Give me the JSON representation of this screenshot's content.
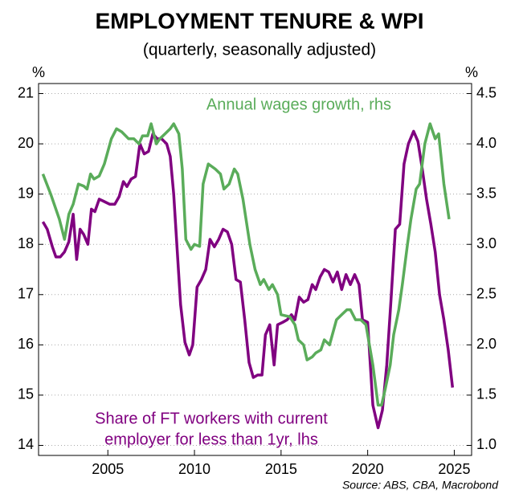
{
  "chart_data": {
    "type": "line",
    "title": "EMPLOYMENT TENURE & WPI",
    "subtitle": "(quarterly, seasonally adjusted)",
    "y_unit": "%",
    "y2_unit": "%",
    "source": "Source: ABS, CBA, Macrobond",
    "xlim": [
      2001,
      2026
    ],
    "xticks": [
      2005,
      2010,
      2015,
      2020,
      2025
    ],
    "ylim": [
      13.8,
      21.2
    ],
    "yticks": [
      14,
      15,
      16,
      17,
      18,
      19,
      20,
      21
    ],
    "y2lim": [
      0.9,
      4.6
    ],
    "y2ticks": [
      {
        "value": 1,
        "label": "1.0"
      },
      1.5,
      {
        "value": 2,
        "label": "2.0"
      },
      2.5,
      {
        "value": 3,
        "label": "3.0"
      },
      3.5,
      {
        "value": 4,
        "label": "4.0"
      },
      4.5
    ],
    "grid": true,
    "series": [
      {
        "name": "Share of FT workers with current employer for less than 1yr, lhs",
        "label_lines": [
          "Share of FT workers with current",
          "employer for less than 1yr, lhs"
        ],
        "color": "#800080",
        "axis": "y",
        "x": [
          2001.25,
          2001.5,
          2001.8,
          2002.0,
          2002.25,
          2002.5,
          2002.75,
          2003.0,
          2003.2,
          2003.4,
          2003.6,
          2003.85,
          2004.05,
          2004.25,
          2004.5,
          2004.8,
          2005.1,
          2005.4,
          2005.65,
          2005.9,
          2006.1,
          2006.35,
          2006.6,
          2006.85,
          2007.1,
          2007.35,
          2007.6,
          2007.85,
          2008.1,
          2008.4,
          2008.6,
          2008.8,
          2009.0,
          2009.2,
          2009.45,
          2009.7,
          2009.9,
          2010.15,
          2010.4,
          2010.65,
          2010.9,
          2011.15,
          2011.4,
          2011.65,
          2011.9,
          2012.15,
          2012.4,
          2012.65,
          2012.9,
          2013.15,
          2013.4,
          2013.65,
          2013.9,
          2014.1,
          2014.35,
          2014.6,
          2014.8,
          2015.1,
          2015.35,
          2015.6,
          2015.8,
          2016.05,
          2016.3,
          2016.55,
          2016.8,
          2017.0,
          2017.25,
          2017.5,
          2017.75,
          2018.0,
          2018.25,
          2018.5,
          2018.75,
          2019.0,
          2019.25,
          2019.5,
          2019.7,
          2020.0,
          2020.3,
          2020.6,
          2020.85,
          2021.1,
          2021.35,
          2021.6,
          2021.85,
          2022.1,
          2022.35,
          2022.65,
          2022.9,
          2023.15,
          2023.4,
          2023.65,
          2023.9,
          2024.15,
          2024.4,
          2024.65,
          2024.9
        ],
        "values": [
          18.45,
          18.3,
          17.95,
          17.75,
          17.75,
          17.85,
          18.05,
          18.6,
          17.7,
          18.3,
          18.2,
          18.0,
          18.7,
          18.65,
          18.9,
          18.85,
          18.8,
          18.8,
          18.95,
          19.25,
          19.15,
          19.3,
          19.35,
          20.0,
          19.8,
          19.85,
          20.2,
          20.1,
          20.1,
          20.0,
          19.75,
          19.0,
          17.9,
          16.8,
          16.05,
          15.8,
          16.0,
          17.15,
          17.3,
          17.5,
          18.1,
          17.95,
          18.1,
          18.3,
          18.25,
          18.0,
          17.3,
          17.25,
          16.5,
          15.65,
          15.35,
          15.4,
          15.4,
          16.2,
          16.4,
          15.6,
          16.4,
          16.45,
          16.5,
          16.6,
          16.5,
          16.95,
          16.85,
          16.9,
          17.2,
          17.1,
          17.35,
          17.5,
          17.45,
          17.25,
          17.45,
          17.1,
          17.4,
          17.2,
          17.4,
          17.2,
          16.5,
          16.45,
          14.8,
          14.35,
          14.7,
          15.6,
          16.9,
          18.3,
          18.4,
          19.6,
          20.0,
          20.25,
          20.05,
          19.5,
          18.9,
          18.4,
          17.85,
          17.0,
          16.5,
          15.9,
          15.15
        ]
      },
      {
        "name": "Annual wages growth, rhs",
        "color": "#5aac5a",
        "axis": "y2",
        "x": [
          2001.25,
          2001.7,
          2002.2,
          2002.5,
          2002.75,
          2003.0,
          2003.3,
          2003.6,
          2003.8,
          2004.0,
          2004.2,
          2004.5,
          2004.8,
          2005.2,
          2005.5,
          2005.8,
          2006.2,
          2006.5,
          2006.8,
          2007.0,
          2007.3,
          2007.5,
          2007.8,
          2008.0,
          2008.3,
          2008.6,
          2008.8,
          2009.1,
          2009.3,
          2009.5,
          2009.8,
          2010.0,
          2010.3,
          2010.5,
          2010.8,
          2011.2,
          2011.5,
          2011.7,
          2012.0,
          2012.3,
          2012.5,
          2012.8,
          2013.2,
          2013.5,
          2013.8,
          2014.0,
          2014.3,
          2014.5,
          2014.8,
          2015.0,
          2015.5,
          2015.8,
          2016.0,
          2016.3,
          2016.5,
          2016.8,
          2017.0,
          2017.3,
          2017.5,
          2017.8,
          2018.2,
          2018.5,
          2018.8,
          2019.0,
          2019.3,
          2019.6,
          2019.9,
          2020.3,
          2020.6,
          2020.8,
          2021.0,
          2021.3,
          2021.5,
          2021.8,
          2022.0,
          2022.3,
          2022.5,
          2022.8,
          2023.0,
          2023.3,
          2023.6,
          2023.9,
          2024.1,
          2024.4,
          2024.7
        ],
        "values": [
          3.7,
          3.5,
          3.25,
          3.05,
          3.3,
          3.4,
          3.6,
          3.58,
          3.55,
          3.7,
          3.65,
          3.68,
          3.8,
          4.05,
          4.15,
          4.12,
          4.05,
          4.05,
          4.0,
          4.08,
          4.08,
          4.2,
          4.0,
          4.05,
          4.1,
          4.15,
          4.2,
          4.1,
          3.75,
          3.05,
          2.95,
          3.0,
          2.98,
          3.6,
          3.8,
          3.75,
          3.7,
          3.55,
          3.6,
          3.75,
          3.7,
          3.45,
          3.0,
          2.75,
          2.6,
          2.65,
          2.55,
          2.6,
          2.5,
          2.3,
          2.28,
          2.2,
          2.05,
          2.0,
          1.85,
          1.88,
          1.92,
          1.95,
          2.05,
          2.0,
          2.25,
          2.3,
          2.35,
          2.35,
          2.25,
          2.25,
          2.2,
          1.8,
          1.4,
          1.4,
          1.55,
          1.8,
          2.1,
          2.35,
          2.6,
          3.0,
          3.25,
          3.55,
          3.6,
          4.0,
          4.2,
          4.05,
          4.1,
          3.6,
          3.25
        ]
      }
    ]
  }
}
